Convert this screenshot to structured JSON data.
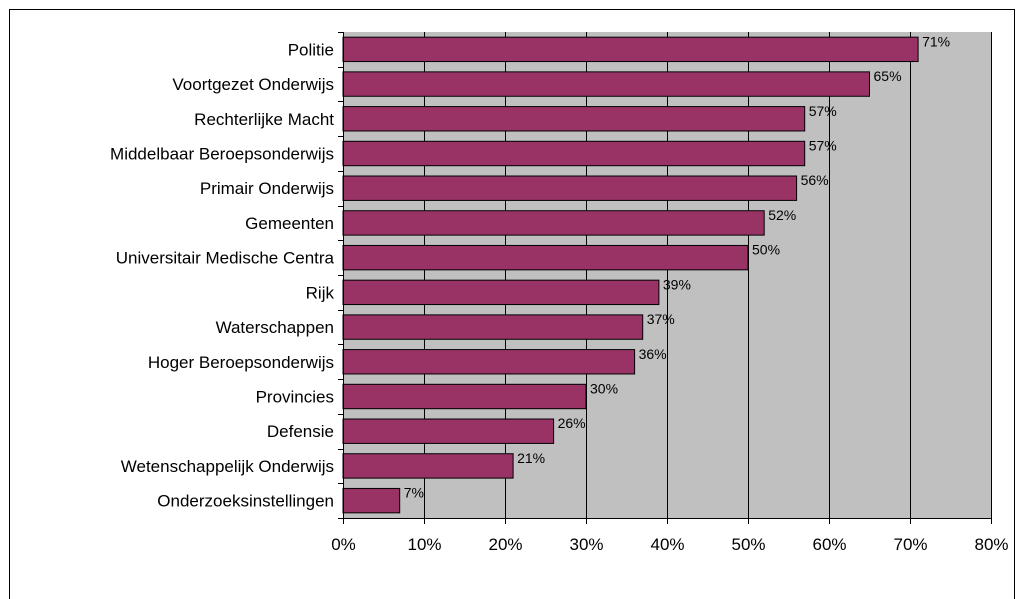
{
  "chart_data": {
    "type": "bar",
    "orientation": "horizontal",
    "categories": [
      "Politie",
      "Voortgezet Onderwijs",
      "Rechterlijke Macht",
      "Middelbaar Beroepsonderwijs",
      "Primair Onderwijs",
      "Gemeenten",
      "Universitair Medische Centra",
      "Rijk",
      "Waterschappen",
      "Hoger Beroepsonderwijs",
      "Provincies",
      "Defensie",
      "Wetenschappelijk Onderwijs",
      "Onderzoeksinstellingen"
    ],
    "values": [
      71,
      65,
      57,
      57,
      56,
      52,
      50,
      39,
      37,
      36,
      30,
      26,
      21,
      7
    ],
    "data_labels": [
      "71%",
      "65%",
      "57%",
      "57%",
      "56%",
      "52%",
      "50%",
      "39%",
      "37%",
      "36%",
      "30%",
      "26%",
      "21%",
      "7%"
    ],
    "xlim": [
      0,
      80
    ],
    "x_ticks": [
      "0%",
      "10%",
      "20%",
      "30%",
      "40%",
      "50%",
      "60%",
      "70%",
      "80%"
    ],
    "grid": true,
    "legend": "none",
    "colors": {
      "bar": "#993366",
      "plot_background": "#c0c0c0",
      "gridline": "#000000"
    }
  }
}
